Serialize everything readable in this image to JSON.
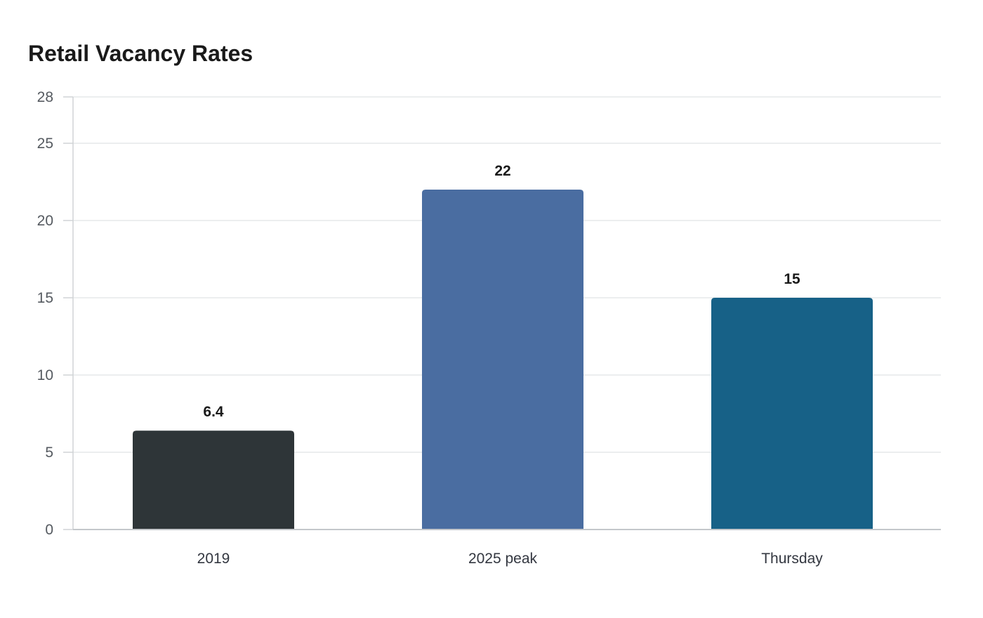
{
  "chart_data": {
    "type": "bar",
    "title": "Retail Vacancy Rates",
    "xlabel": "",
    "ylabel": "",
    "categories": [
      "2019",
      "2025 peak",
      "Thursday"
    ],
    "values": [
      6.4,
      22,
      15
    ],
    "value_labels": [
      "6.4",
      "22",
      "15"
    ],
    "colors": [
      "#2e3538",
      "#4a6da1",
      "#176187"
    ],
    "ylim": [
      0,
      28
    ],
    "yticks": [
      0,
      5,
      10,
      15,
      20,
      25,
      28
    ],
    "grid": true,
    "legend": "none"
  }
}
